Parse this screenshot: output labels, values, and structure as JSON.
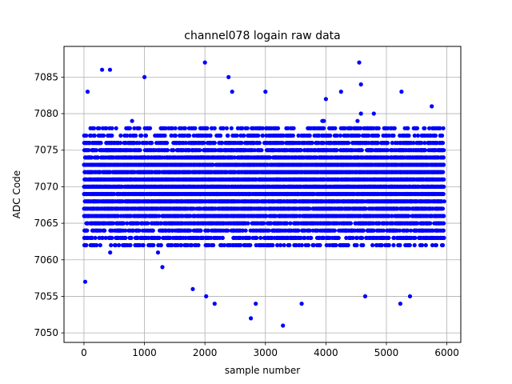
{
  "chart_data": {
    "type": "scatter",
    "title": "channel078 logain raw data",
    "xlabel": "sample number",
    "ylabel": "ADC Code",
    "xlim": [
      -330,
      6230
    ],
    "ylim": [
      7048.7,
      7089.2
    ],
    "xticks": [
      0,
      1000,
      2000,
      3000,
      4000,
      5000,
      6000
    ],
    "yticks": [
      7050,
      7055,
      7060,
      7065,
      7070,
      7075,
      7080,
      7085
    ],
    "grid": true,
    "marker_color": "#0000ff",
    "series": [
      {
        "n_points": 5950,
        "x_start": 0,
        "x_step": 40,
        "y_center": 7070,
        "dense_band": [
          7062,
          7078
        ],
        "visible_outliers": [
          [
            20,
            7057
          ],
          [
            60,
            7083
          ],
          [
            300,
            7086
          ],
          [
            430,
            7086
          ],
          [
            1000,
            7085
          ],
          [
            2000,
            7087
          ],
          [
            2390,
            7085
          ],
          [
            2450,
            7083
          ],
          [
            2760,
            7052
          ],
          [
            2840,
            7054
          ],
          [
            3000,
            7083
          ],
          [
            3290,
            7051
          ],
          [
            3600,
            7054
          ],
          [
            4000,
            7082
          ],
          [
            4250,
            7083
          ],
          [
            4550,
            7087
          ],
          [
            4580,
            7084
          ],
          [
            4650,
            7055
          ],
          [
            5250,
            7083
          ],
          [
            5230,
            7054
          ],
          [
            5390,
            7055
          ],
          [
            5750,
            7081
          ],
          [
            2160,
            7054
          ],
          [
            2020,
            7055
          ],
          [
            1800,
            7056
          ]
        ]
      }
    ]
  }
}
